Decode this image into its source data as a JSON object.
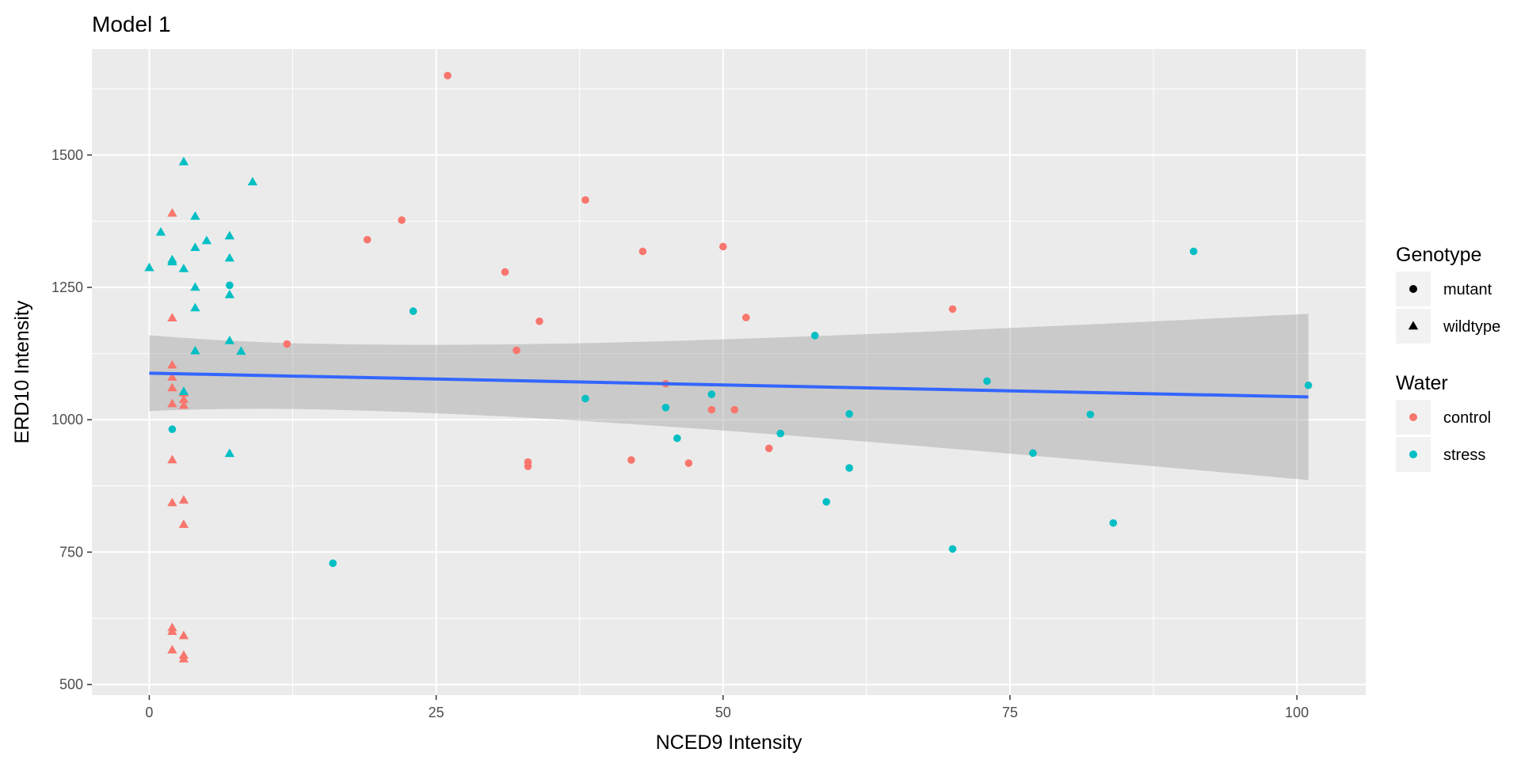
{
  "chart_data": {
    "type": "scatter",
    "title": "Model 1",
    "xlabel": "NCED9 Intensity",
    "ylabel": "ERD10 Intensity",
    "xlim": [
      -5,
      106
    ],
    "ylim": [
      480,
      1700
    ],
    "x_ticks": [
      0,
      25,
      50,
      75,
      100
    ],
    "x_tick_labels": [
      "0",
      "25",
      "50",
      "75",
      "100"
    ],
    "y_ticks": [
      500,
      750,
      1000,
      1250,
      1500
    ],
    "y_tick_labels": [
      "500",
      "750",
      "1000",
      "1250",
      "1500"
    ],
    "grid": true,
    "background": "#ebebeb",
    "colors": {
      "control": "#f8766d",
      "stress": "#00bfc4",
      "fit_line": "#3366ff",
      "ribbon": "#999999"
    },
    "legend_position": "right",
    "legends": [
      {
        "title": "Genotype",
        "entries": [
          {
            "label": "mutant",
            "shape": "circle"
          },
          {
            "label": "wildtype",
            "shape": "triangle"
          }
        ]
      },
      {
        "title": "Water",
        "entries": [
          {
            "label": "control",
            "color": "#f8766d"
          },
          {
            "label": "stress",
            "color": "#00bfc4"
          }
        ]
      }
    ],
    "series": [
      {
        "water": "control",
        "genotype": "mutant",
        "points": [
          [
            12,
            1143
          ],
          [
            19,
            1340
          ],
          [
            22,
            1377
          ],
          [
            26,
            1650
          ],
          [
            31,
            1279
          ],
          [
            32,
            1131
          ],
          [
            33,
            920
          ],
          [
            33,
            912
          ],
          [
            34,
            1186
          ],
          [
            38,
            1415
          ],
          [
            42,
            924
          ],
          [
            43,
            1318
          ],
          [
            45,
            1068
          ],
          [
            47,
            918
          ],
          [
            49,
            1019
          ],
          [
            50,
            1327
          ],
          [
            51,
            1019
          ],
          [
            52,
            1193
          ],
          [
            54,
            946
          ],
          [
            70,
            1209
          ]
        ]
      },
      {
        "water": "stress",
        "genotype": "mutant",
        "points": [
          [
            2,
            982
          ],
          [
            7,
            1254
          ],
          [
            16,
            729
          ],
          [
            23,
            1205
          ],
          [
            38,
            1040
          ],
          [
            45,
            1023
          ],
          [
            46,
            965
          ],
          [
            49,
            1048
          ],
          [
            55,
            974
          ],
          [
            58,
            1159
          ],
          [
            59,
            845
          ],
          [
            61,
            1011
          ],
          [
            61,
            909
          ],
          [
            70,
            756
          ],
          [
            73,
            1073
          ],
          [
            77,
            937
          ],
          [
            82,
            1010
          ],
          [
            84,
            805
          ],
          [
            91,
            1318
          ],
          [
            101,
            1065
          ]
        ]
      },
      {
        "water": "control",
        "genotype": "wildtype",
        "points": [
          [
            2,
            1390
          ],
          [
            2,
            1192
          ],
          [
            2,
            1103
          ],
          [
            2,
            1080
          ],
          [
            2,
            1060
          ],
          [
            2,
            1030
          ],
          [
            2,
            924
          ],
          [
            2,
            843
          ],
          [
            2,
            607
          ],
          [
            2,
            600
          ],
          [
            2,
            565
          ],
          [
            3,
            1050
          ],
          [
            3,
            1038
          ],
          [
            3,
            1027
          ],
          [
            3,
            848
          ],
          [
            3,
            802
          ],
          [
            3,
            592
          ],
          [
            3,
            555
          ],
          [
            3,
            548
          ]
        ]
      },
      {
        "water": "stress",
        "genotype": "wildtype",
        "points": [
          [
            0,
            1287
          ],
          [
            1,
            1354
          ],
          [
            2,
            1302
          ],
          [
            2,
            1298
          ],
          [
            3,
            1487
          ],
          [
            3,
            1285
          ],
          [
            3,
            1053
          ],
          [
            4,
            1384
          ],
          [
            4,
            1325
          ],
          [
            4,
            1250
          ],
          [
            4,
            1211
          ],
          [
            4,
            1130
          ],
          [
            5,
            1338
          ],
          [
            7,
            1347
          ],
          [
            7,
            1305
          ],
          [
            7,
            1236
          ],
          [
            7,
            1149
          ],
          [
            7,
            936
          ],
          [
            8,
            1129
          ],
          [
            9,
            1449
          ]
        ]
      }
    ],
    "fit": {
      "method": "lm",
      "x_range": [
        0,
        101
      ],
      "y_start": 1088,
      "y_end": 1043,
      "ci_lower_start": 1017,
      "ci_upper_start": 1160,
      "ci_lower_end": 886,
      "ci_upper_end": 1200
    }
  }
}
